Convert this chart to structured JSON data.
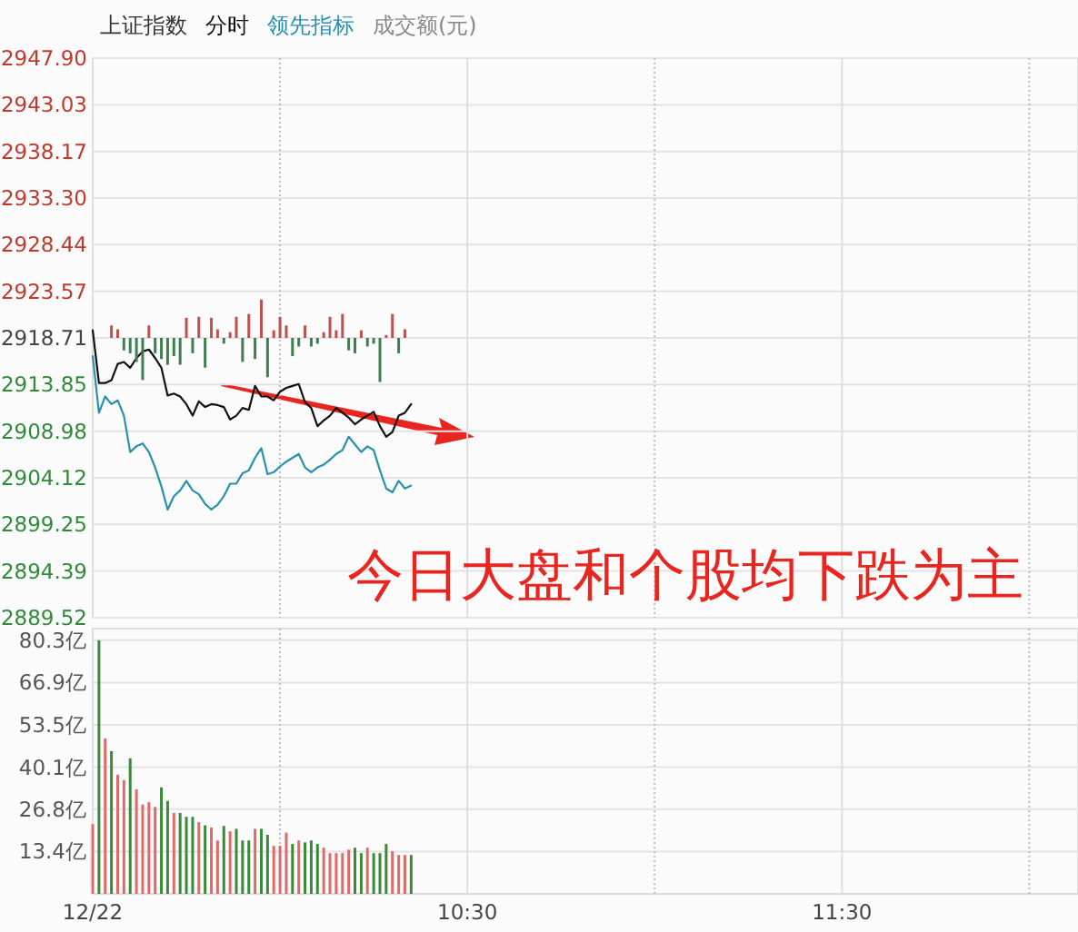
{
  "chart_data": [
    {
      "type": "line",
      "title": "上证指数",
      "subtitle": "成交额(元)",
      "x": [
        9.5,
        9.5167,
        9.5333,
        9.55,
        9.5667,
        9.5833,
        9.6,
        9.6167,
        9.6333,
        9.65,
        9.6667,
        9.6833,
        9.7,
        9.7167,
        9.7333,
        9.75,
        9.7667,
        9.7833,
        9.8,
        9.8167,
        9.8333,
        9.85,
        9.8667,
        9.8833,
        9.9,
        9.9167,
        9.9333,
        9.95,
        9.9667,
        9.9833,
        10.0,
        10.0167,
        10.0333,
        10.05,
        10.0667,
        10.0833,
        10.1,
        10.1167,
        10.1333,
        10.15,
        10.1667,
        10.1833,
        10.2,
        10.2167,
        10.2333,
        10.25,
        10.2667,
        10.2833,
        10.3,
        10.3167,
        10.3333,
        10.35
      ],
      "series": [
        {
          "name": "分时",
          "color": "#111111",
          "values": [
            2919.5,
            2914.0,
            2914.0,
            2914.3,
            2916.0,
            2916.2,
            2915.6,
            2916.6,
            2917.3,
            2917.5,
            2916.6,
            2915.6,
            2912.7,
            2912.9,
            2912.6,
            2911.8,
            2910.6,
            2912.1,
            2911.5,
            2911.8,
            2911.7,
            2911.5,
            2910.2,
            2910.6,
            2911.4,
            2911.2,
            2913.7,
            2912.6,
            2912.6,
            2912.2,
            2913.1,
            2913.5,
            2913.7,
            2913.9,
            2912.0,
            2911.4,
            2909.5,
            2910.1,
            2910.6,
            2911.4,
            2910.9,
            2910.4,
            2909.7,
            2910.2,
            2910.6,
            2911.0,
            2909.5,
            2908.4,
            2908.9,
            2910.6,
            2910.9,
            2911.8
          ]
        },
        {
          "name": "领先指标",
          "color": "#2a90b0",
          "values": [
            2916.8,
            2910.9,
            2912.6,
            2911.8,
            2912.2,
            2910.6,
            2906.8,
            2907.4,
            2907.7,
            2906.8,
            2905.2,
            2903.2,
            2900.8,
            2902.2,
            2902.8,
            2903.8,
            2902.8,
            2902.4,
            2901.4,
            2900.8,
            2901.3,
            2902.2,
            2903.5,
            2903.5,
            2904.6,
            2904.9,
            2906.2,
            2907.2,
            2904.5,
            2904.7,
            2905.3,
            2905.8,
            2906.2,
            2906.6,
            2905.2,
            2904.7,
            2905.2,
            2905.5,
            2906.0,
            2906.6,
            2907.0,
            2908.4,
            2907.6,
            2906.8,
            2907.4,
            2907.0,
            2904.9,
            2903.0,
            2902.6,
            2903.8,
            2903.0,
            2903.3
          ]
        },
        {
          "type": "bar",
          "x": [
            9.55,
            9.5667,
            9.5833,
            9.6,
            9.6167,
            9.6333,
            9.65,
            9.6667,
            9.6833,
            9.7,
            9.7167,
            9.7333,
            9.75,
            9.7667,
            9.7833,
            9.8,
            9.8167,
            9.8333,
            9.85,
            9.8667,
            9.8833,
            9.9,
            9.9167,
            9.9333,
            9.95,
            9.9667,
            9.9833,
            10.0,
            10.0167,
            10.0333,
            10.05,
            10.0667,
            10.0833,
            10.1,
            10.1167,
            10.1333,
            10.15,
            10.1667,
            10.1833,
            10.2,
            10.2167,
            10.2333,
            10.25,
            10.2667,
            10.2833,
            10.3,
            10.3167,
            10.3333
          ],
          "base": [
            2918.71,
            2918.71,
            2918.71,
            2918.71,
            2918.71,
            2918.71,
            2918.71,
            2918.71,
            2918.71,
            2918.71,
            2918.71,
            2918.71,
            2918.71,
            2918.71,
            2918.71,
            2918.71,
            2918.71,
            2918.71,
            2918.71,
            2918.71,
            2918.71,
            2918.71,
            2918.71,
            2918.71,
            2918.71,
            2918.71,
            2918.71,
            2918.71,
            2918.71,
            2918.71,
            2918.71,
            2918.71,
            2918.71,
            2918.71,
            2918.71,
            2918.71,
            2918.71,
            2918.71,
            2918.71,
            2918.71,
            2918.71,
            2918.71,
            2918.71,
            2918.71,
            2918.71,
            2918.71,
            2918.71,
            2918.71
          ],
          "values": [
            1.3,
            0.9,
            -1.3,
            -1.6,
            -2.5,
            -4.4,
            1.3,
            -1.6,
            -2.2,
            -2.8,
            -1.9,
            -2.8,
            2.1,
            -1.6,
            2.2,
            -3.1,
            2.1,
            0.9,
            -0.6,
            0.6,
            2.2,
            -2.5,
            2.5,
            -2.2,
            4.0,
            -4.1,
            0.8,
            2.2,
            1.3,
            -1.9,
            -0.9,
            1.3,
            -0.9,
            -0.6,
            0.6,
            2.2,
            0.8,
            2.5,
            -1.3,
            -1.6,
            0.8,
            -0.9,
            -0.6,
            -4.6,
            0.3,
            2.5,
            -1.6,
            0.9
          ],
          "colors": [
            "#c0504d",
            "#c0504d",
            "#3f7f4f",
            "#3f7f4f",
            "#3f7f4f",
            "#3f7f4f",
            "#c0504d",
            "#3f7f4f",
            "#3f7f4f",
            "#3f7f4f",
            "#3f7f4f",
            "#3f7f4f",
            "#c0504d",
            "#3f7f4f",
            "#c0504d",
            "#3f7f4f",
            "#c0504d",
            "#c0504d",
            "#3f7f4f",
            "#c0504d",
            "#c0504d",
            "#3f7f4f",
            "#c0504d",
            "#3f7f4f",
            "#c0504d",
            "#3f7f4f",
            "#c0504d",
            "#c0504d",
            "#c0504d",
            "#3f7f4f",
            "#3f7f4f",
            "#c0504d",
            "#3f7f4f",
            "#3f7f4f",
            "#c0504d",
            "#c0504d",
            "#c0504d",
            "#c0504d",
            "#3f7f4f",
            "#3f7f4f",
            "#c0504d",
            "#3f7f4f",
            "#3f7f4f",
            "#3f7f4f",
            "#c0504d",
            "#c0504d",
            "#3f7f4f",
            "#c0504d"
          ]
        }
      ],
      "xlim": [
        9.5,
        12.13
      ],
      "xticks": [
        9.5,
        10.0,
        10.5,
        11.0,
        11.5,
        12.0
      ],
      "ylim": [
        2889.52,
        2947.9
      ],
      "yticks": [
        2889.52,
        2894.39,
        2899.25,
        {
          "value": 2904.12,
          "label": "2904.12"
        },
        2908.98,
        2913.85,
        2918.71,
        2923.57,
        2928.44,
        {
          "value": 2933.3,
          "label": "2933.30"
        },
        2938.17,
        2943.03,
        {
          "value": 2947.9,
          "label": "2947.90"
        }
      ],
      "grid": true,
      "legend": "top left",
      "tick_labels": "y",
      "annotations": [
        "今日大盘和个股均下跌为主"
      ]
    },
    {
      "type": "bar",
      "x": [
        9.5,
        9.5167,
        9.5333,
        9.55,
        9.5667,
        9.5833,
        9.6,
        9.6167,
        9.6333,
        9.65,
        9.6667,
        9.6833,
        9.7,
        9.7167,
        9.7333,
        9.75,
        9.7667,
        9.7833,
        9.8,
        9.8167,
        9.8333,
        9.85,
        9.8667,
        9.8833,
        9.9,
        9.9167,
        9.9333,
        9.95,
        9.9667,
        9.9833,
        10.0,
        10.0167,
        10.0333,
        10.05,
        10.0667,
        10.0833,
        10.1,
        10.1167,
        10.1333,
        10.15,
        10.1667,
        10.1833,
        10.2,
        10.2167,
        10.2333,
        10.25,
        10.2667,
        10.2833,
        10.3,
        10.3167,
        10.3333,
        10.35
      ],
      "values": [
        22.1,
        80.3,
        49.2,
        45.2,
        37.7,
        36.0,
        42.9,
        33.1,
        28.3,
        29.0,
        27.5,
        33.7,
        29.4,
        25.6,
        25.6,
        24.4,
        24.4,
        22.7,
        21.7,
        21.0,
        16.9,
        21.5,
        19.8,
        20.6,
        16.9,
        16.9,
        20.6,
        20.6,
        18.7,
        15.2,
        15.2,
        19.4,
        15.8,
        16.9,
        16.3,
        16.9,
        15.8,
        14.6,
        12.9,
        12.9,
        12.9,
        14.0,
        14.6,
        12.9,
        14.6,
        12.9,
        12.9,
        15.8,
        13.5,
        12.3,
        12.3,
        12.3
      ],
      "colors": [
        "#e06a6a",
        "#3a8a3a",
        "#e06a6a",
        "#3a8a3a",
        "#e06a6a",
        "#e06a6a",
        "#3a8a3a",
        "#e06a6a",
        "#e06a6a",
        "#e06a6a",
        "#e06a6a",
        "#3a8a3a",
        "#3a8a3a",
        "#e06a6a",
        "#3a8a3a",
        "#3a8a3a",
        "#3a8a3a",
        "#e06a6a",
        "#3a8a3a",
        "#e06a6a",
        "#e06a6a",
        "#3a8a3a",
        "#e06a6a",
        "#3a8a3a",
        "#3a8a3a",
        "#3a8a3a",
        "#e06a6a",
        "#3a8a3a",
        "#3a8a3a",
        "#e06a6a",
        "#e06a6a",
        "#e06a6a",
        "#3a8a3a",
        "#e06a6a",
        "#3a8a3a",
        "#3a8a3a",
        "#3a8a3a",
        "#e06a6a",
        "#e06a6a",
        "#e06a6a",
        "#e06a6a",
        "#e06a6a",
        "#3a8a3a",
        "#3a8a3a",
        "#e06a6a",
        "#3a8a3a",
        "#3a8a3a",
        "#3a8a3a",
        "#e06a6a",
        "#e06a6a",
        "#e06a6a",
        "#3a8a3a"
      ],
      "xlim": [
        9.5,
        12.13
      ],
      "xticks": [
        {
          "value": 9.5,
          "label": "12/22"
        },
        {
          "value": 10.0,
          "label": null
        },
        {
          "value": 10.5,
          "label": "10:30"
        },
        {
          "value": 11.0,
          "label": null
        },
        {
          "value": 11.5,
          "label": "11:30"
        },
        {
          "value": 12.0,
          "label": null
        }
      ],
      "ylim": [
        0,
        84
      ],
      "yticks": [
        {
          "value": 13.4,
          "label": "13.4亿"
        },
        {
          "value": 26.8,
          "label": "26.8亿"
        },
        {
          "value": 40.1,
          "label": "40.1亿"
        },
        {
          "value": 53.5,
          "label": "53.5亿"
        },
        {
          "value": 66.9,
          "label": "66.9亿"
        },
        {
          "value": 80.3,
          "label": "80.3亿"
        }
      ],
      "grid": true
    }
  ]
}
